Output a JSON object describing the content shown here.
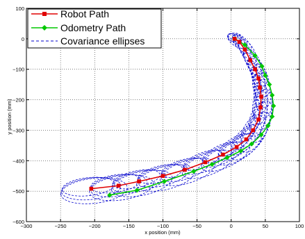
{
  "chart_data": {
    "type": "line",
    "xlabel": "x position (mm)",
    "ylabel": "y position (mm)",
    "xlim": [
      -300,
      100
    ],
    "ylim": [
      -600,
      100
    ],
    "grid": true,
    "legend_position": "top-left",
    "x_ticks": [
      -300,
      -250,
      -200,
      -150,
      -100,
      -50,
      0,
      50,
      100
    ],
    "y_ticks": [
      100,
      0,
      -100,
      -200,
      -300,
      -400,
      -500,
      -600
    ],
    "x_tick_labels": [
      "−300",
      "−250",
      "−200",
      "−150",
      "−100",
      "−50",
      "0",
      "50",
      "100"
    ],
    "y_tick_labels": [
      "100",
      "0",
      "−100",
      "−200",
      "−300",
      "−400",
      "−500",
      "−600"
    ],
    "series": [
      {
        "name": "Robot Path",
        "color": "#e00000",
        "marker": "square",
        "x": [
          5,
          12,
          20,
          28,
          35,
          40,
          42,
          44,
          43,
          40,
          32,
          22,
          8,
          -12,
          -38,
          -68,
          -100,
          -135,
          -165,
          -205
        ],
        "y": [
          0,
          -10,
          -35,
          -70,
          -100,
          -130,
          -160,
          -190,
          -225,
          -265,
          -300,
          -330,
          -355,
          -380,
          -405,
          -430,
          -450,
          -468,
          -482,
          -492
        ]
      },
      {
        "name": "Odometry Path",
        "color": "#00c800",
        "marker": "diamond",
        "x": [
          5,
          20,
          35,
          45,
          50,
          56,
          60,
          62,
          60,
          54,
          44,
          30,
          14,
          -6,
          -28,
          -55,
          -98,
          -138,
          -178
        ],
        "y": [
          0,
          -20,
          -55,
          -90,
          -120,
          -150,
          -185,
          -220,
          -255,
          -285,
          -315,
          -345,
          -368,
          -390,
          -412,
          -435,
          -468,
          -497,
          -513
        ]
      },
      {
        "name": "Covariance ellipses",
        "color": "#0000cc",
        "style": "dashed"
      }
    ]
  }
}
